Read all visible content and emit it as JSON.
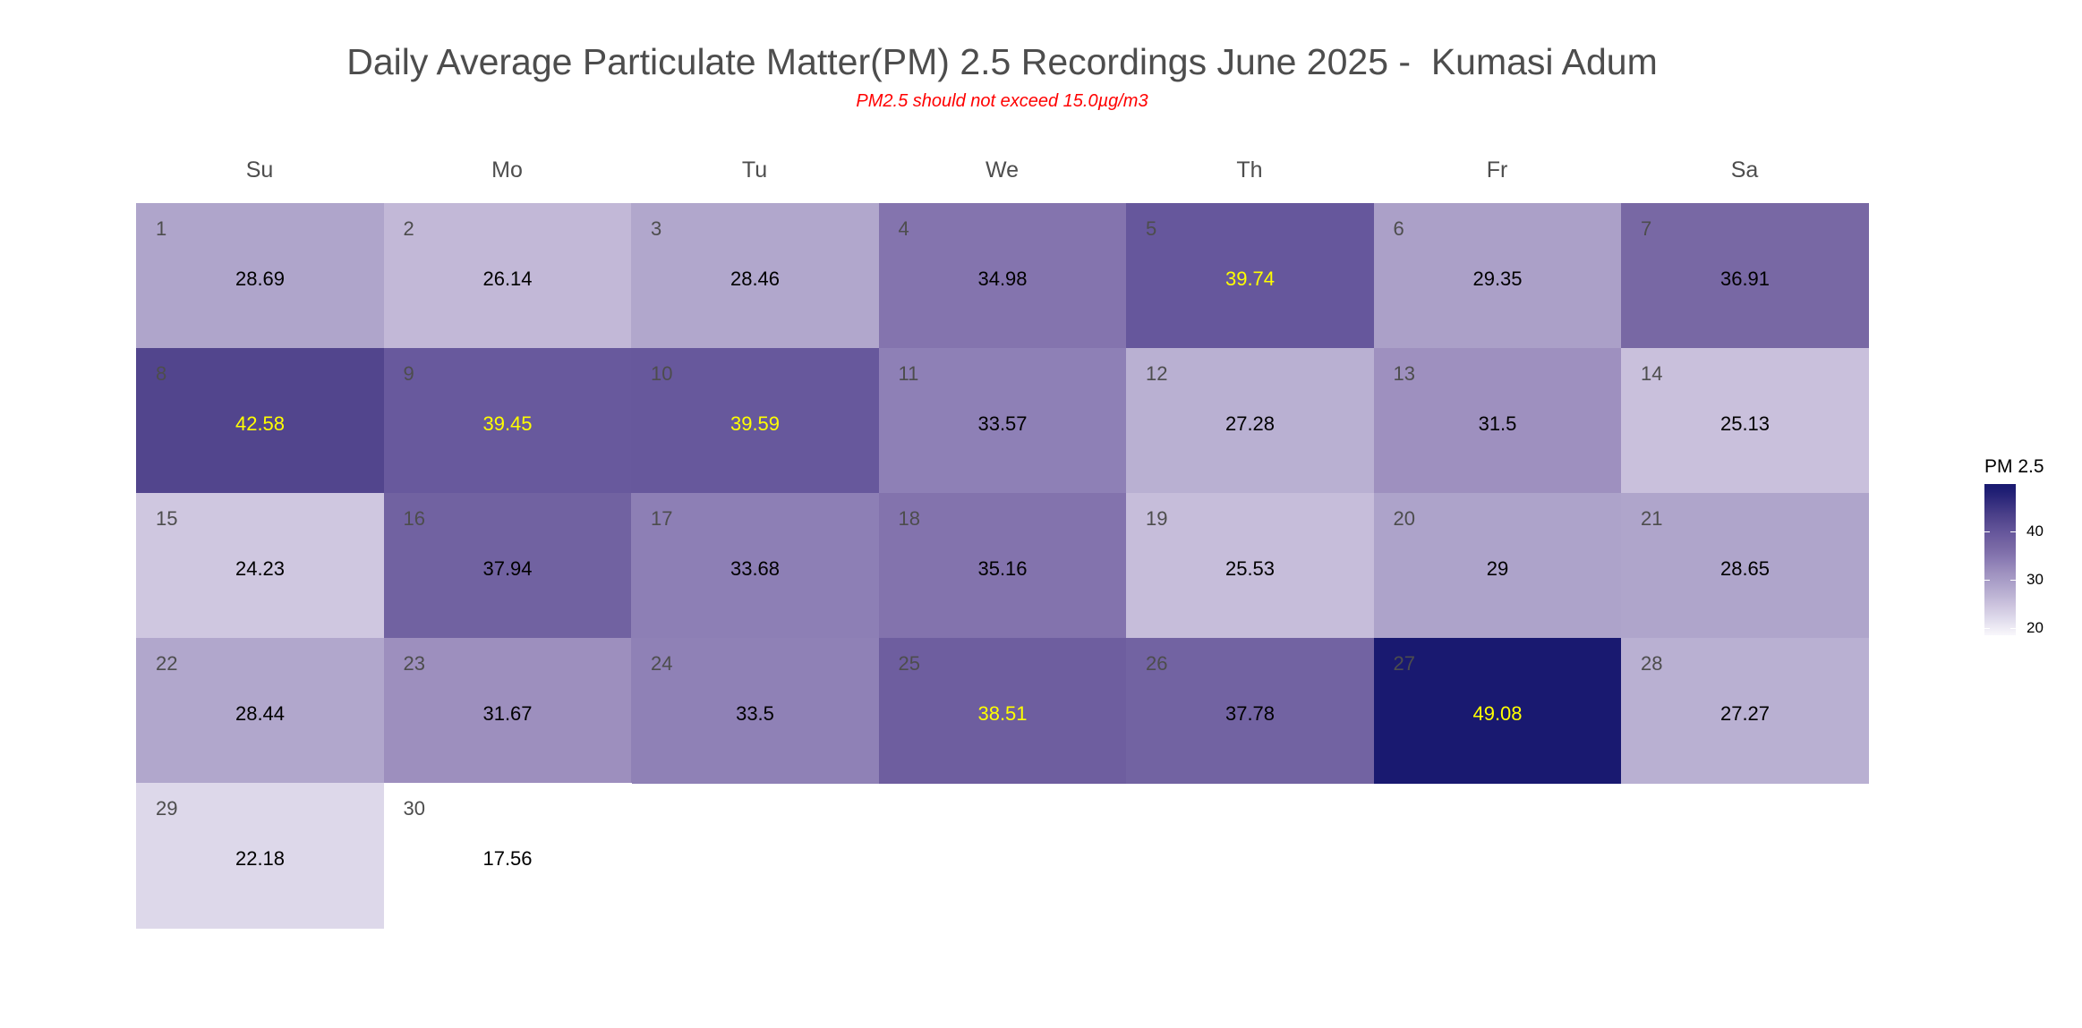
{
  "chart_data": {
    "type": "heatmap",
    "subtype": "calendar",
    "title": "Daily Average Particulate Matter(PM) 2.5 Recordings June 2025 -  Kumasi Adum",
    "subtitle": "PM2.5 should not exceed 15.0µg/m3",
    "month": "June 2025",
    "location": "Kumasi Adum",
    "weekdays": [
      "Su",
      "Mo",
      "Tu",
      "We",
      "Th",
      "Fr",
      "Sa"
    ],
    "first_weekday_index": 0,
    "days": [
      {
        "day": 1,
        "value": 28.69
      },
      {
        "day": 2,
        "value": 26.14
      },
      {
        "day": 3,
        "value": 28.46
      },
      {
        "day": 4,
        "value": 34.98
      },
      {
        "day": 5,
        "value": 39.74
      },
      {
        "day": 6,
        "value": 29.35
      },
      {
        "day": 7,
        "value": 36.91
      },
      {
        "day": 8,
        "value": 42.58
      },
      {
        "day": 9,
        "value": 39.45
      },
      {
        "day": 10,
        "value": 39.59
      },
      {
        "day": 11,
        "value": 33.57
      },
      {
        "day": 12,
        "value": 27.28
      },
      {
        "day": 13,
        "value": 31.5
      },
      {
        "day": 14,
        "value": 25.13
      },
      {
        "day": 15,
        "value": 24.23
      },
      {
        "day": 16,
        "value": 37.94
      },
      {
        "day": 17,
        "value": 33.68
      },
      {
        "day": 18,
        "value": 35.16
      },
      {
        "day": 19,
        "value": 25.53
      },
      {
        "day": 20,
        "value": 29
      },
      {
        "day": 21,
        "value": 28.65
      },
      {
        "day": 22,
        "value": 28.44
      },
      {
        "day": 23,
        "value": 31.67
      },
      {
        "day": 24,
        "value": 33.5
      },
      {
        "day": 25,
        "value": 38.51
      },
      {
        "day": 26,
        "value": 37.78
      },
      {
        "day": 27,
        "value": 49.08
      },
      {
        "day": 28,
        "value": 27.27
      },
      {
        "day": 29,
        "value": 22.18
      },
      {
        "day": 30,
        "value": 17.56
      }
    ],
    "legend": {
      "title": "PM 2.5",
      "ticks": [
        20,
        30,
        40
      ],
      "position": "right",
      "low_color": "#ffffff",
      "high_color": "#191970"
    },
    "value_label_colors": {
      "normal": "#000000",
      "high": "#ffff00",
      "high_threshold": 38.5
    },
    "color_range": [
      17.56,
      49.08
    ]
  }
}
